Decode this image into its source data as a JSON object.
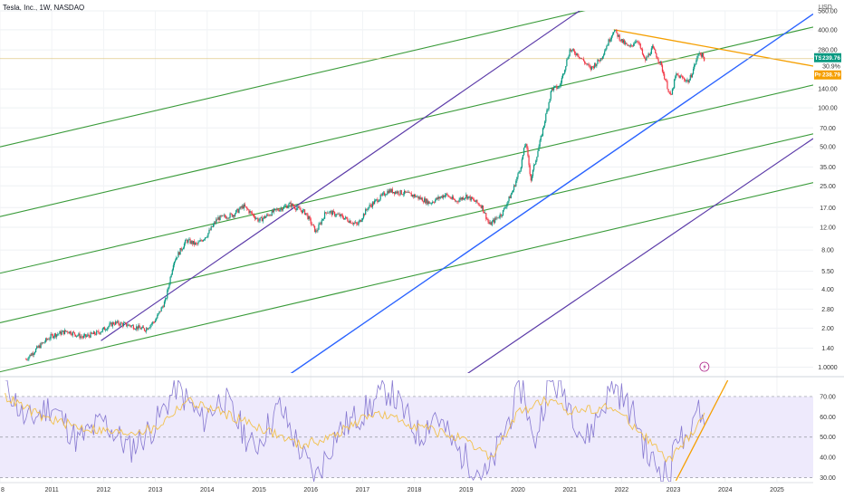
{
  "header": {
    "symbol_title": "Tesla, Inc., 1W, NASDAQ",
    "currency": "USD"
  },
  "chart_data": [
    {
      "type": "candlestick",
      "title": "Tesla, Inc., 1W, NASDAQ",
      "y_scale": "log",
      "ylim": [
        0.9,
        560
      ],
      "y_ticks": [
        {
          "label": "560.00",
          "value": 560
        },
        {
          "label": "400.00",
          "value": 400
        },
        {
          "label": "280.00",
          "value": 280
        },
        {
          "label": "140.00",
          "value": 140
        },
        {
          "label": "100.00",
          "value": 100
        },
        {
          "label": "70.00",
          "value": 70
        },
        {
          "label": "50.00",
          "value": 50
        },
        {
          "label": "35.00",
          "value": 35
        },
        {
          "label": "25.00",
          "value": 25
        },
        {
          "label": "17.00",
          "value": 17
        },
        {
          "label": "12.00",
          "value": 12
        },
        {
          "label": "8.00",
          "value": 8
        },
        {
          "label": "5.50",
          "value": 5.5
        },
        {
          "label": "4.00",
          "value": 4
        },
        {
          "label": "2.80",
          "value": 2.8
        },
        {
          "label": "2.00",
          "value": 2
        },
        {
          "label": "1.40",
          "value": 1.4
        },
        {
          "label": "1.0000",
          "value": 1.0
        }
      ],
      "x_ticks": [
        "8",
        "2011",
        "2012",
        "2013",
        "2014",
        "2015",
        "2016",
        "2017",
        "2018",
        "2019",
        "2020",
        "2021",
        "2022",
        "2023",
        "2024",
        "2025"
      ],
      "x_tick_years": [
        2010.0,
        2011,
        2012,
        2013,
        2014,
        2015,
        2016,
        2017,
        2018,
        2019,
        2020,
        2021,
        2022,
        2023,
        2024,
        2025
      ],
      "xlim": [
        2010.0,
        2025.7
      ],
      "price_path": [
        [
          2010.5,
          1.15
        ],
        [
          2010.8,
          1.5
        ],
        [
          2011.0,
          1.75
        ],
        [
          2011.3,
          1.9
        ],
        [
          2011.6,
          1.7
        ],
        [
          2011.9,
          1.85
        ],
        [
          2012.2,
          2.2
        ],
        [
          2012.5,
          2.1
        ],
        [
          2012.8,
          1.95
        ],
        [
          2013.0,
          2.3
        ],
        [
          2013.2,
          3.3
        ],
        [
          2013.35,
          6.5
        ],
        [
          2013.6,
          9.5
        ],
        [
          2013.8,
          8.8
        ],
        [
          2014.0,
          10.5
        ],
        [
          2014.2,
          14.0
        ],
        [
          2014.5,
          15.0
        ],
        [
          2014.7,
          17.5
        ],
        [
          2015.0,
          13.5
        ],
        [
          2015.3,
          16.0
        ],
        [
          2015.6,
          18.0
        ],
        [
          2015.9,
          15.5
        ],
        [
          2016.1,
          11.0
        ],
        [
          2016.3,
          16.0
        ],
        [
          2016.6,
          14.5
        ],
        [
          2016.9,
          12.5
        ],
        [
          2017.1,
          17.0
        ],
        [
          2017.5,
          23.0
        ],
        [
          2017.8,
          22.0
        ],
        [
          2018.0,
          21.0
        ],
        [
          2018.3,
          18.5
        ],
        [
          2018.6,
          21.5
        ],
        [
          2018.8,
          19.0
        ],
        [
          2019.0,
          21.0
        ],
        [
          2019.3,
          17.5
        ],
        [
          2019.45,
          12.5
        ],
        [
          2019.7,
          15.5
        ],
        [
          2019.9,
          23.0
        ],
        [
          2020.05,
          35.0
        ],
        [
          2020.15,
          55.0
        ],
        [
          2020.25,
          28.0
        ],
        [
          2020.45,
          60.0
        ],
        [
          2020.65,
          140.0
        ],
        [
          2020.8,
          145.0
        ],
        [
          2021.0,
          280.0
        ],
        [
          2021.15,
          260.0
        ],
        [
          2021.4,
          200.0
        ],
        [
          2021.6,
          240.0
        ],
        [
          2021.85,
          400.0
        ],
        [
          2022.0,
          330.0
        ],
        [
          2022.15,
          290.0
        ],
        [
          2022.3,
          340.0
        ],
        [
          2022.45,
          230.0
        ],
        [
          2022.6,
          290.0
        ],
        [
          2022.75,
          220.0
        ],
        [
          2022.95,
          120.0
        ],
        [
          2023.05,
          180.0
        ],
        [
          2023.3,
          160.0
        ],
        [
          2023.5,
          270.0
        ],
        [
          2023.6,
          239.76
        ]
      ],
      "series": [
        {
          "name": "TSLA",
          "last_value": 239.76,
          "last_label": "239.76",
          "sub_label": "30.9%",
          "color": "#089981"
        },
        {
          "name": "Pre",
          "last_value": 238.79,
          "last_label": "238.79",
          "color": "#f59f00"
        }
      ],
      "trendlines": {
        "green_channel": {
          "color": "#3a9b3a",
          "lines": [
            [
              [
                2010.0,
                50
              ],
              [
                2025.7,
                1450
              ]
            ],
            [
              [
                2010.0,
                14.5
              ],
              [
                2025.7,
                420
              ]
            ],
            [
              [
                2010.0,
                5.3
              ],
              [
                2025.7,
                150
              ]
            ],
            [
              [
                2010.0,
                2.2
              ],
              [
                2025.7,
                63
              ]
            ],
            [
              [
                2010.0,
                0.92
              ],
              [
                2025.7,
                26.5
              ]
            ]
          ]
        },
        "purple": {
          "color": "#5b3aa8",
          "lines": [
            [
              [
                2011.95,
                1.6
              ],
              [
                2021.75,
                800
              ]
            ],
            [
              [
                2018.1,
                0.5
              ],
              [
                2025.7,
                58
              ]
            ]
          ]
        },
        "blue": {
          "color": "#2962ff",
          "lines": [
            [
              [
                2014.7,
                0.5
              ],
              [
                2025.7,
                530
              ]
            ]
          ]
        },
        "orange": {
          "color": "#f59f00",
          "lines": [
            [
              [
                2021.85,
                400
              ],
              [
                2025.7,
                210
              ]
            ]
          ]
        }
      },
      "crosshair_price": 239.76
    },
    {
      "type": "line",
      "title": "",
      "ylim": [
        28,
        78
      ],
      "y_ticks": [
        "70.00",
        "60.00",
        "50.00",
        "40.00",
        "30.00"
      ],
      "bands": [
        30,
        50,
        70
      ],
      "series": [
        {
          "name": "",
          "color": "#8779d1",
          "values_by_year": [
            [
              2010.1,
              78
            ],
            [
              2010.5,
              57
            ],
            [
              2011.0,
              66
            ],
            [
              2011.5,
              48
            ],
            [
              2012.0,
              58
            ],
            [
              2012.5,
              44
            ],
            [
              2013.0,
              56
            ],
            [
              2013.4,
              75
            ],
            [
              2013.9,
              58
            ],
            [
              2014.3,
              70
            ],
            [
              2014.9,
              44
            ],
            [
              2015.4,
              65
            ],
            [
              2015.9,
              38
            ],
            [
              2016.1,
              30
            ],
            [
              2016.5,
              52
            ],
            [
              2017.1,
              64
            ],
            [
              2017.5,
              74
            ],
            [
              2018.1,
              50
            ],
            [
              2018.4,
              62
            ],
            [
              2018.8,
              44
            ],
            [
              2019.4,
              30
            ],
            [
              2019.9,
              64
            ],
            [
              2020.1,
              76
            ],
            [
              2020.3,
              45
            ],
            [
              2020.6,
              78
            ],
            [
              2020.9,
              72
            ],
            [
              2021.3,
              48
            ],
            [
              2021.85,
              76
            ],
            [
              2022.3,
              58
            ],
            [
              2022.5,
              40
            ],
            [
              2022.95,
              30
            ],
            [
              2023.05,
              55
            ],
            [
              2023.3,
              42
            ],
            [
              2023.45,
              70
            ],
            [
              2023.6,
              56
            ]
          ]
        },
        {
          "name": "",
          "color": "#f2c14e",
          "values_by_year": [
            [
              2010.1,
              70
            ],
            [
              2010.8,
              60
            ],
            [
              2011.5,
              55
            ],
            [
              2012.3,
              52
            ],
            [
              2013.0,
              54
            ],
            [
              2013.6,
              68
            ],
            [
              2014.3,
              62
            ],
            [
              2015.0,
              55
            ],
            [
              2015.8,
              46
            ],
            [
              2016.4,
              50
            ],
            [
              2017.2,
              62
            ],
            [
              2018.0,
              56
            ],
            [
              2018.8,
              50
            ],
            [
              2019.5,
              40
            ],
            [
              2020.0,
              62
            ],
            [
              2020.5,
              68
            ],
            [
              2021.0,
              63
            ],
            [
              2021.8,
              65
            ],
            [
              2022.4,
              52
            ],
            [
              2022.9,
              38
            ],
            [
              2023.3,
              50
            ],
            [
              2023.6,
              62
            ]
          ]
        }
      ],
      "trendline": {
        "color": "#f59f00",
        "from": [
          2023.05,
          28.5
        ],
        "to": [
          2024.05,
          78
        ]
      }
    }
  ],
  "colors": {
    "up": "#089981",
    "down": "#f23645",
    "band_fill": "#eeeafc",
    "background": "#ffffff"
  },
  "overlays": {
    "event_marker_icon": "lightning-bolt-icon"
  }
}
